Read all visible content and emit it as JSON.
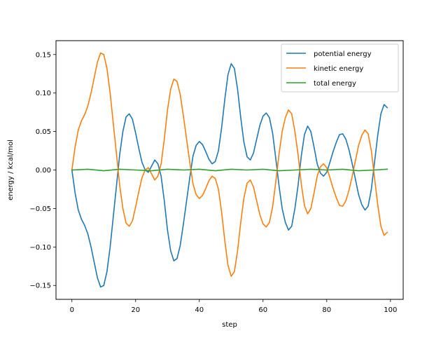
{
  "chart_data": {
    "type": "line",
    "title": "",
    "xlabel": "step",
    "ylabel": "energy / kcal/mol",
    "xlim": [
      -5,
      104
    ],
    "ylim": [
      -0.168,
      0.168
    ],
    "xticks": [
      0,
      20,
      40,
      60,
      80,
      100
    ],
    "yticks": [
      -0.15,
      -0.1,
      -0.05,
      0.0,
      0.05,
      0.1,
      0.15
    ],
    "ytick_labels": [
      "−0.15",
      "−0.10",
      "−0.05",
      "0.00",
      "0.05",
      "0.10",
      "0.15"
    ],
    "grid": false,
    "legend_position": "top-right",
    "series": [
      {
        "name": "potential energy",
        "color": "#1f77b4",
        "x": [
          0,
          1,
          2,
          3,
          4,
          5,
          6,
          7,
          8,
          9,
          10,
          11,
          12,
          13,
          14,
          15,
          16,
          17,
          18,
          19,
          20,
          21,
          22,
          23,
          24,
          25,
          26,
          27,
          28,
          29,
          30,
          31,
          32,
          33,
          34,
          35,
          36,
          37,
          38,
          39,
          40,
          41,
          42,
          43,
          44,
          45,
          46,
          47,
          48,
          49,
          50,
          51,
          52,
          53,
          54,
          55,
          56,
          57,
          58,
          59,
          60,
          61,
          62,
          63,
          64,
          65,
          66,
          67,
          68,
          69,
          70,
          71,
          72,
          73,
          74,
          75,
          76,
          77,
          78,
          79,
          80,
          81,
          82,
          83,
          84,
          85,
          86,
          87,
          88,
          89,
          90,
          91,
          92,
          93,
          94,
          95,
          96,
          97,
          98,
          99
        ],
        "values": [
          0.0,
          -0.03,
          -0.052,
          -0.064,
          -0.072,
          -0.083,
          -0.1,
          -0.12,
          -0.14,
          -0.152,
          -0.15,
          -0.132,
          -0.1,
          -0.06,
          -0.02,
          0.02,
          0.05,
          0.069,
          0.073,
          0.066,
          0.048,
          0.028,
          0.01,
          0.0,
          -0.003,
          0.005,
          0.013,
          0.008,
          -0.008,
          -0.04,
          -0.078,
          -0.105,
          -0.118,
          -0.115,
          -0.098,
          -0.07,
          -0.04,
          -0.01,
          0.018,
          0.032,
          0.037,
          0.033,
          0.024,
          0.014,
          0.008,
          0.011,
          0.025,
          0.055,
          0.092,
          0.124,
          0.138,
          0.132,
          0.105,
          0.068,
          0.036,
          0.017,
          0.013,
          0.022,
          0.04,
          0.058,
          0.07,
          0.074,
          0.068,
          0.048,
          0.015,
          -0.02,
          -0.05,
          -0.068,
          -0.078,
          -0.073,
          -0.05,
          -0.02,
          0.018,
          0.046,
          0.057,
          0.05,
          0.03,
          0.008,
          -0.004,
          -0.008,
          -0.003,
          0.01,
          0.024,
          0.036,
          0.046,
          0.047,
          0.04,
          0.026,
          0.008,
          -0.012,
          -0.032,
          -0.045,
          -0.052,
          -0.047,
          -0.025,
          0.01,
          0.045,
          0.073,
          0.085,
          0.081
        ]
      },
      {
        "name": "kinetic energy",
        "color": "#ff7f0e",
        "x": [
          0,
          1,
          2,
          3,
          4,
          5,
          6,
          7,
          8,
          9,
          10,
          11,
          12,
          13,
          14,
          15,
          16,
          17,
          18,
          19,
          20,
          21,
          22,
          23,
          24,
          25,
          26,
          27,
          28,
          29,
          30,
          31,
          32,
          33,
          34,
          35,
          36,
          37,
          38,
          39,
          40,
          41,
          42,
          43,
          44,
          45,
          46,
          47,
          48,
          49,
          50,
          51,
          52,
          53,
          54,
          55,
          56,
          57,
          58,
          59,
          60,
          61,
          62,
          63,
          64,
          65,
          66,
          67,
          68,
          69,
          70,
          71,
          72,
          73,
          74,
          75,
          76,
          77,
          78,
          79,
          80,
          81,
          82,
          83,
          84,
          85,
          86,
          87,
          88,
          89,
          90,
          91,
          92,
          93,
          94,
          95,
          96,
          97,
          98,
          99
        ],
        "values": [
          0.0,
          0.03,
          0.052,
          0.064,
          0.072,
          0.083,
          0.1,
          0.12,
          0.14,
          0.152,
          0.15,
          0.132,
          0.1,
          0.06,
          0.02,
          -0.02,
          -0.05,
          -0.069,
          -0.073,
          -0.066,
          -0.048,
          -0.028,
          -0.01,
          0.0,
          0.003,
          -0.005,
          -0.013,
          -0.008,
          0.008,
          0.04,
          0.078,
          0.105,
          0.118,
          0.115,
          0.098,
          0.07,
          0.04,
          0.01,
          -0.018,
          -0.032,
          -0.037,
          -0.033,
          -0.024,
          -0.014,
          -0.008,
          -0.011,
          -0.025,
          -0.055,
          -0.092,
          -0.124,
          -0.138,
          -0.132,
          -0.105,
          -0.068,
          -0.036,
          -0.017,
          -0.013,
          -0.022,
          -0.04,
          -0.058,
          -0.07,
          -0.074,
          -0.068,
          -0.048,
          -0.015,
          0.02,
          0.05,
          0.068,
          0.078,
          0.073,
          0.05,
          0.02,
          -0.018,
          -0.046,
          -0.057,
          -0.05,
          -0.03,
          -0.008,
          0.004,
          0.008,
          0.003,
          -0.01,
          -0.024,
          -0.036,
          -0.046,
          -0.047,
          -0.04,
          -0.026,
          -0.008,
          0.012,
          0.032,
          0.045,
          0.052,
          0.047,
          0.025,
          -0.01,
          -0.045,
          -0.073,
          -0.085,
          -0.081
        ]
      },
      {
        "name": "total energy",
        "color": "#2ca02c",
        "x": [
          0,
          5,
          10,
          15,
          20,
          25,
          30,
          35,
          40,
          45,
          50,
          55,
          60,
          65,
          70,
          75,
          80,
          85,
          90,
          95,
          99
        ],
        "values": [
          0.0,
          0.001,
          -0.001,
          0.001,
          0.0,
          -0.001,
          0.001,
          0.0,
          0.001,
          -0.001,
          0.001,
          0.0,
          0.001,
          -0.001,
          0.0,
          0.001,
          0.0,
          0.001,
          -0.001,
          0.0,
          0.001
        ]
      }
    ]
  }
}
